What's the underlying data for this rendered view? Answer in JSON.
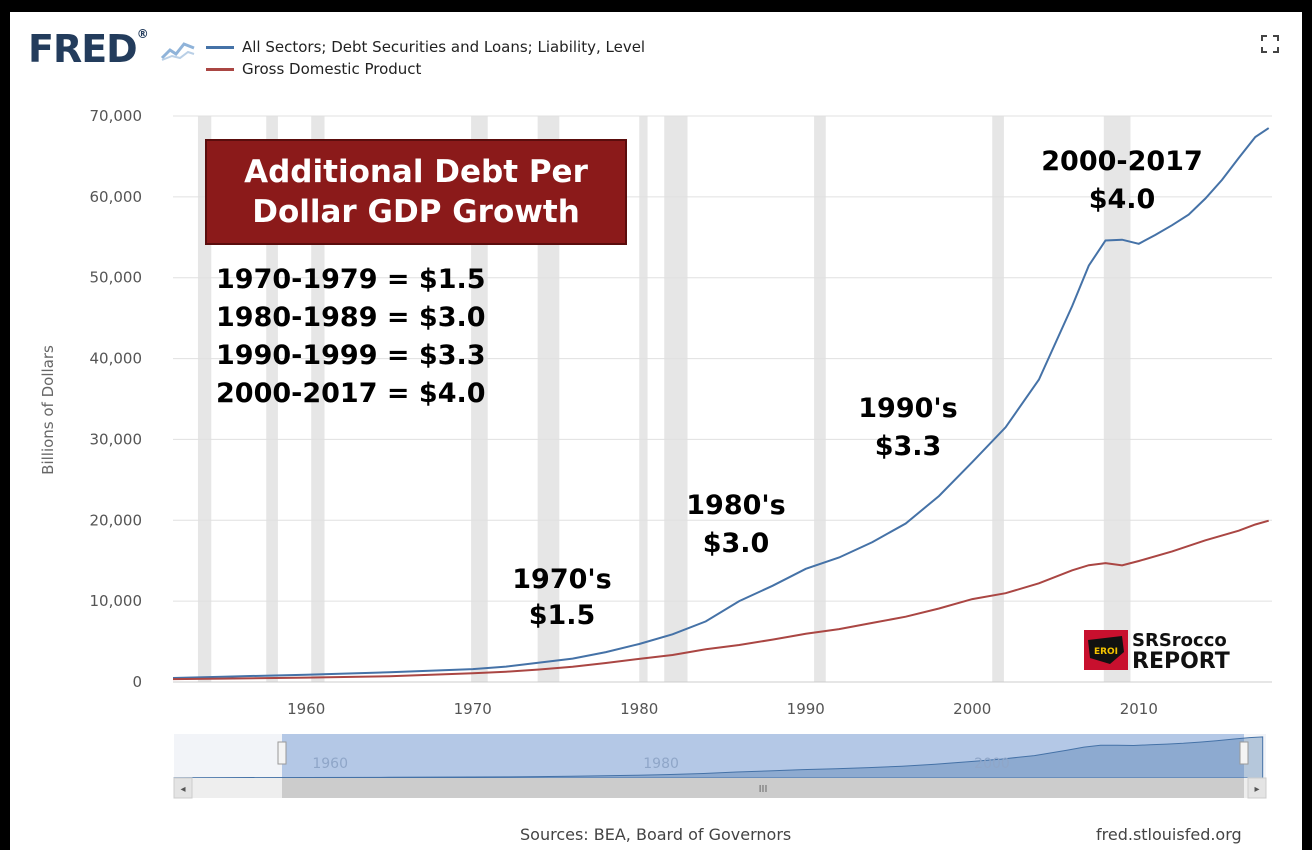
{
  "header": {
    "logo_text": "FRED",
    "logo_mark": "®",
    "fullscreen_icon": "fullscreen-icon"
  },
  "legend": [
    {
      "label": "All Sectors; Debt Securities and Loans; Liability, Level",
      "color": "#4572a7"
    },
    {
      "label": "Gross Domestic Product",
      "color": "#aa4643"
    }
  ],
  "annotations": {
    "title_box": "Additional Debt Per Dollar GDP Growth",
    "title_line1": "Additional Debt Per",
    "title_line2": "Dollar GDP Growth",
    "title_box_color": "#8b1a1a",
    "ratios": [
      "1970-1979 = $1.5",
      "1980-1989 = $3.0",
      "1990-1999 = $3.3",
      "2000-2017 = $4.0"
    ],
    "labels": [
      {
        "line1": "1970's",
        "line2": "$1.5"
      },
      {
        "line1": "1980's",
        "line2": "$3.0"
      },
      {
        "line1": "1990's",
        "line2": "$3.3"
      },
      {
        "line1": "2000-2017",
        "line2": "$4.0"
      }
    ],
    "brand": "SRSrocco REPORT",
    "brand_line1": "SRSrocco",
    "brand_line2": "REPORT",
    "brand_badge": "EROI"
  },
  "chart_data": {
    "type": "line",
    "title": "",
    "xlabel": "",
    "ylabel": "Billions of Dollars",
    "xlim": [
      1952,
      2018
    ],
    "ylim": [
      0,
      70000
    ],
    "x_ticks": [
      "1960",
      "1970",
      "1980",
      "1990",
      "2000",
      "2010"
    ],
    "y_ticks": [
      "0",
      "10,000",
      "20,000",
      "30,000",
      "40,000",
      "50,000",
      "60,000",
      "70,000"
    ],
    "grid": true,
    "legend_position": "top-left",
    "recessions": [
      [
        1953.5,
        1954.3
      ],
      [
        1957.6,
        1958.3
      ],
      [
        1960.3,
        1961.1
      ],
      [
        1969.9,
        1970.9
      ],
      [
        1973.9,
        1975.2
      ],
      [
        1980.0,
        1980.5
      ],
      [
        1981.5,
        1982.9
      ],
      [
        1990.5,
        1991.2
      ],
      [
        2001.2,
        2001.9
      ],
      [
        2007.9,
        2009.5
      ]
    ],
    "series": [
      {
        "name": "All Sectors; Debt Securities and Loans; Liability, Level",
        "color": "#4572a7",
        "points": [
          [
            1952,
            500
          ],
          [
            1955,
            650
          ],
          [
            1960,
            900
          ],
          [
            1965,
            1200
          ],
          [
            1970,
            1600
          ],
          [
            1972,
            1900
          ],
          [
            1974,
            2400
          ],
          [
            1976,
            2900
          ],
          [
            1978,
            3700
          ],
          [
            1980,
            4700
          ],
          [
            1982,
            5900
          ],
          [
            1984,
            7500
          ],
          [
            1986,
            10000
          ],
          [
            1988,
            11900
          ],
          [
            1990,
            14000
          ],
          [
            1992,
            15400
          ],
          [
            1994,
            17300
          ],
          [
            1996,
            19600
          ],
          [
            1998,
            23000
          ],
          [
            2000,
            27200
          ],
          [
            2002,
            31500
          ],
          [
            2004,
            37400
          ],
          [
            2006,
            46500
          ],
          [
            2007,
            51500
          ],
          [
            2008,
            54600
          ],
          [
            2009,
            54700
          ],
          [
            2010,
            54200
          ],
          [
            2011,
            55300
          ],
          [
            2012,
            56500
          ],
          [
            2013,
            57800
          ],
          [
            2014,
            59800
          ],
          [
            2015,
            62100
          ],
          [
            2016,
            64800
          ],
          [
            2017,
            67400
          ],
          [
            2017.8,
            68500
          ]
        ]
      },
      {
        "name": "Gross Domestic Product",
        "color": "#aa4643",
        "points": [
          [
            1952,
            360
          ],
          [
            1955,
            420
          ],
          [
            1960,
            540
          ],
          [
            1965,
            720
          ],
          [
            1970,
            1070
          ],
          [
            1972,
            1280
          ],
          [
            1974,
            1550
          ],
          [
            1976,
            1880
          ],
          [
            1978,
            2350
          ],
          [
            1980,
            2860
          ],
          [
            1982,
            3340
          ],
          [
            1984,
            4040
          ],
          [
            1986,
            4580
          ],
          [
            1988,
            5240
          ],
          [
            1990,
            5960
          ],
          [
            1992,
            6540
          ],
          [
            1994,
            7310
          ],
          [
            1996,
            8070
          ],
          [
            1998,
            9090
          ],
          [
            2000,
            10250
          ],
          [
            2002,
            10980
          ],
          [
            2004,
            12210
          ],
          [
            2006,
            13810
          ],
          [
            2007,
            14450
          ],
          [
            2008,
            14710
          ],
          [
            2009,
            14420
          ],
          [
            2010,
            14960
          ],
          [
            2012,
            16150
          ],
          [
            2014,
            17520
          ],
          [
            2016,
            18710
          ],
          [
            2017,
            19480
          ],
          [
            2017.8,
            19950
          ]
        ]
      }
    ],
    "navigator": {
      "x_ticks": [
        "1960",
        "1980",
        "2000"
      ],
      "scroll_icon": "III"
    }
  },
  "footer": {
    "sources": "Sources: BEA, Board of Governors",
    "site": "fred.stlouisfed.org"
  }
}
